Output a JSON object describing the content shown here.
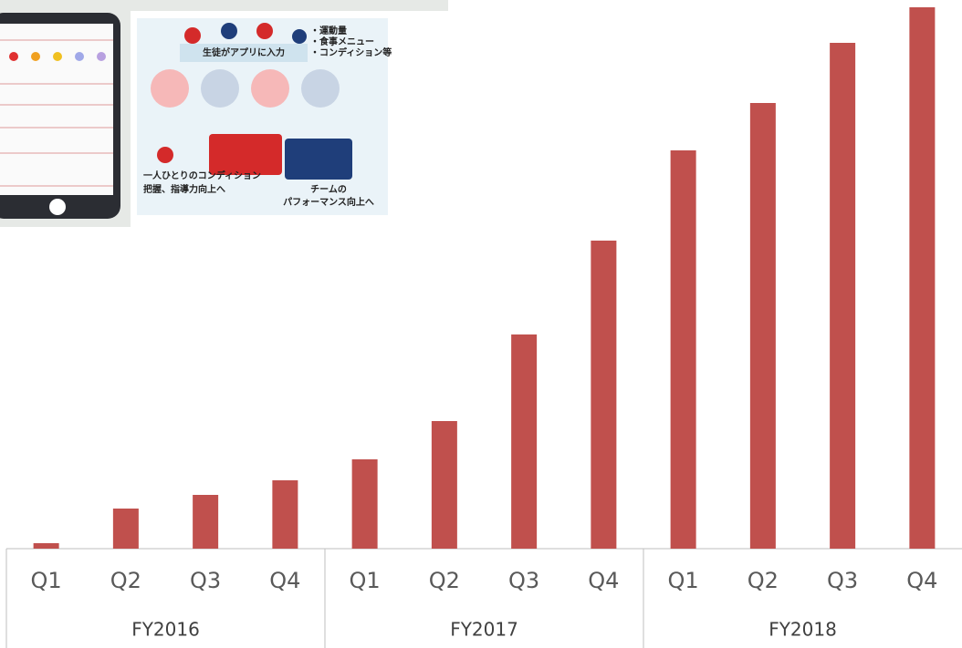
{
  "chart_data": {
    "type": "bar",
    "categories": [
      "Q1",
      "Q2",
      "Q3",
      "Q4",
      "Q1",
      "Q2",
      "Q3",
      "Q4",
      "Q1",
      "Q2",
      "Q3",
      "Q4"
    ],
    "groups": [
      "FY2016",
      "FY2017",
      "FY2018"
    ],
    "values": [
      6,
      44,
      59,
      75,
      98,
      140,
      235,
      338,
      437,
      489,
      555,
      594
    ],
    "color": "#c0504d",
    "ylim": [
      0,
      600
    ]
  },
  "illustration": {
    "input": "生徒がアプリに入力",
    "items": [
      "・運動量",
      "・食事メニュー",
      "・コンディション等"
    ],
    "individual": [
      "一人ひとりのコンディション",
      "把握、指導力向上へ"
    ],
    "team": [
      "チームの",
      "パフォーマンス向上へ"
    ]
  }
}
